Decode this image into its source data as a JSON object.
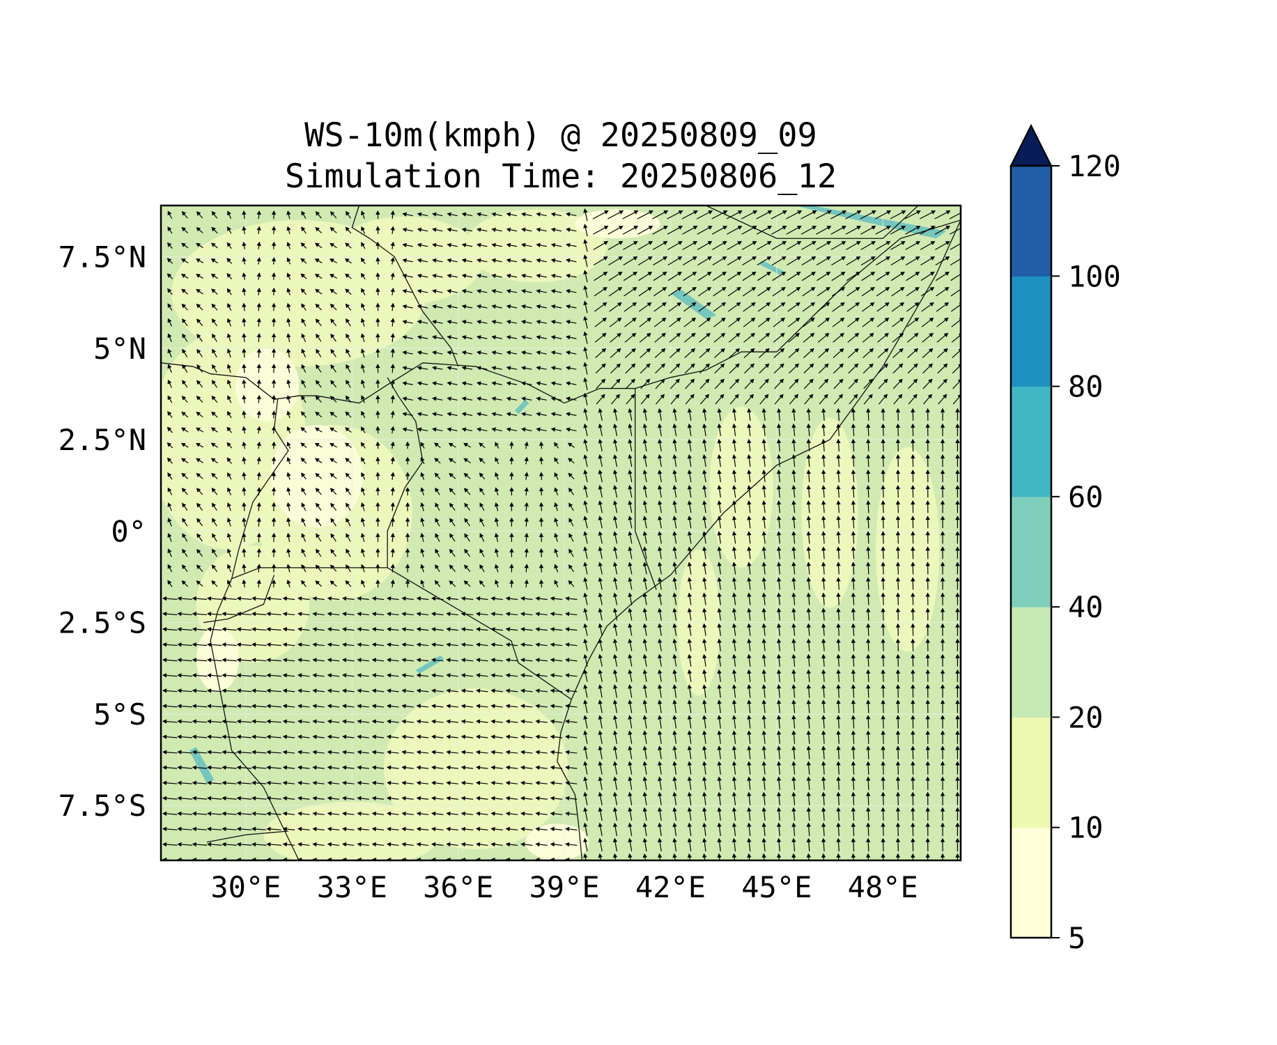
{
  "title": {
    "line1": "WS-10m(kmph) @ 20250809_09",
    "line2": "Simulation Time: 20250806_12"
  },
  "map": {
    "lon_range": [
      27.6,
      50.2
    ],
    "lat_range": [
      -9.0,
      8.9
    ],
    "x_ticks": [
      {
        "value": 30,
        "label": "30°E"
      },
      {
        "value": 33,
        "label": "33°E"
      },
      {
        "value": 36,
        "label": "36°E"
      },
      {
        "value": 39,
        "label": "39°E"
      },
      {
        "value": 42,
        "label": "42°E"
      },
      {
        "value": 45,
        "label": "45°E"
      },
      {
        "value": 48,
        "label": "48°E"
      }
    ],
    "y_ticks": [
      {
        "value": 7.5,
        "label": "7.5°N"
      },
      {
        "value": 5,
        "label": "5°N"
      },
      {
        "value": 2.5,
        "label": "2.5°N"
      },
      {
        "value": 0,
        "label": "0°"
      },
      {
        "value": -2.5,
        "label": "2.5°S"
      },
      {
        "value": -5,
        "label": "5°S"
      },
      {
        "value": -7.5,
        "label": "7.5°S"
      }
    ],
    "background_color": "#d0eab2",
    "borders": [
      {
        "name": "coast",
        "points": [
          [
            27.6,
            4.6
          ],
          [
            28.5,
            4.5
          ],
          [
            29.0,
            4.3
          ],
          [
            30.0,
            4.2
          ],
          [
            30.8,
            3.6
          ],
          [
            31.5,
            3.7
          ],
          [
            32.0,
            3.7
          ],
          [
            33.2,
            3.5
          ],
          [
            34.0,
            4.0
          ],
          [
            35.0,
            4.6
          ],
          [
            36.5,
            4.5
          ],
          [
            38.0,
            4.0
          ],
          [
            39.0,
            3.5
          ],
          [
            40.0,
            3.9
          ],
          [
            41.0,
            3.9
          ],
          [
            42.0,
            4.2
          ],
          [
            43.0,
            4.4
          ],
          [
            44.0,
            4.9
          ],
          [
            45.0,
            4.9
          ],
          [
            47.0,
            6.8
          ],
          [
            48.5,
            8.0
          ],
          [
            50.2,
            8.5
          ]
        ]
      },
      {
        "name": "eastern-coastline",
        "points": [
          [
            50.2,
            8.5
          ],
          [
            49.5,
            7.0
          ],
          [
            48.0,
            4.5
          ],
          [
            46.5,
            2.5
          ],
          [
            45.0,
            1.8
          ],
          [
            43.5,
            0.5
          ],
          [
            42.0,
            -1.2
          ],
          [
            41.0,
            -1.9
          ],
          [
            40.2,
            -2.6
          ],
          [
            39.7,
            -3.5
          ],
          [
            39.2,
            -4.6
          ],
          [
            38.9,
            -5.5
          ],
          [
            38.8,
            -6.3
          ],
          [
            39.3,
            -7.2
          ],
          [
            39.4,
            -8.0
          ],
          [
            39.5,
            -9.0
          ]
        ]
      },
      {
        "name": "somalia-kenya-border",
        "points": [
          [
            41.0,
            3.9
          ],
          [
            41.0,
            0.0
          ],
          [
            41.6,
            -1.6
          ]
        ]
      },
      {
        "name": "ethiopia-somalia-border",
        "points": [
          [
            43.0,
            8.9
          ],
          [
            45.0,
            8.0
          ],
          [
            48.0,
            8.0
          ],
          [
            49.0,
            8.9
          ]
        ]
      },
      {
        "name": "kenya-tanzania-border",
        "points": [
          [
            34.0,
            -1.0
          ],
          [
            37.5,
            -3.0
          ],
          [
            37.7,
            -3.6
          ],
          [
            39.2,
            -4.6
          ]
        ]
      },
      {
        "name": "kenya-uganda-border",
        "points": [
          [
            34.0,
            -1.0
          ],
          [
            34.0,
            0.0
          ],
          [
            34.5,
            1.2
          ],
          [
            35.0,
            1.9
          ],
          [
            34.8,
            3.0
          ],
          [
            34.3,
            3.7
          ],
          [
            34.0,
            4.2
          ]
        ]
      },
      {
        "name": "uganda-west-border",
        "points": [
          [
            29.6,
            -1.3
          ],
          [
            29.8,
            -0.5
          ],
          [
            30.2,
            0.8
          ],
          [
            31.2,
            2.2
          ],
          [
            30.8,
            2.8
          ],
          [
            30.9,
            3.6
          ]
        ]
      },
      {
        "name": "lake-victoria-south",
        "points": [
          [
            29.6,
            -1.3
          ],
          [
            30.4,
            -1.0
          ],
          [
            34.0,
            -1.0
          ]
        ]
      },
      {
        "name": "south-sudan-ethiopia",
        "points": [
          [
            33.2,
            8.9
          ],
          [
            33.0,
            8.3
          ],
          [
            33.5,
            8.0
          ],
          [
            34.2,
            7.5
          ],
          [
            35.0,
            6.0
          ],
          [
            35.8,
            5.0
          ],
          [
            36.0,
            4.5
          ]
        ]
      },
      {
        "name": "tanzania-west",
        "points": [
          [
            29.6,
            -1.3
          ],
          [
            29.2,
            -2.2
          ],
          [
            29.0,
            -3.0
          ],
          [
            29.3,
            -4.5
          ],
          [
            29.6,
            -6.0
          ],
          [
            30.5,
            -7.0
          ],
          [
            31.0,
            -8.0
          ],
          [
            31.5,
            -9.0
          ]
        ]
      },
      {
        "name": "rwanda-burundi",
        "points": [
          [
            28.8,
            -2.5
          ],
          [
            29.5,
            -2.4
          ],
          [
            30.5,
            -2.0
          ],
          [
            30.8,
            -1.2
          ]
        ]
      },
      {
        "name": "tanzania-zambia",
        "points": [
          [
            28.9,
            -8.5
          ],
          [
            30.0,
            -8.3
          ],
          [
            31.2,
            -8.2
          ]
        ]
      }
    ],
    "high_wind_patches": [
      {
        "name": "northeast-jet",
        "color": "#74c6be",
        "points": [
          [
            45.5,
            8.9
          ],
          [
            49.5,
            8.0
          ],
          [
            49.8,
            8.2
          ],
          [
            46.0,
            8.9
          ]
        ]
      },
      {
        "name": "ethiopia-rift",
        "color": "#74c6be",
        "points": [
          [
            42.0,
            6.5
          ],
          [
            43.0,
            5.8
          ],
          [
            43.3,
            5.9
          ],
          [
            42.3,
            6.6
          ]
        ]
      },
      {
        "name": "northeast-small",
        "color": "#74c6be",
        "points": [
          [
            44.5,
            7.3
          ],
          [
            45.1,
            7.0
          ],
          [
            45.2,
            7.1
          ],
          [
            44.6,
            7.4
          ]
        ]
      },
      {
        "name": "tanzania-sw",
        "color": "#74c6be",
        "points": [
          [
            28.4,
            -6.0
          ],
          [
            28.9,
            -6.9
          ],
          [
            29.1,
            -6.8
          ],
          [
            28.6,
            -5.9
          ]
        ]
      },
      {
        "name": "lake-region",
        "color": "#74c6be",
        "points": [
          [
            34.8,
            -3.8
          ],
          [
            35.5,
            -3.4
          ],
          [
            35.6,
            -3.5
          ],
          [
            34.9,
            -3.9
          ]
        ]
      },
      {
        "name": "kenya-north",
        "color": "#74c6be",
        "points": [
          [
            37.6,
            3.3
          ],
          [
            37.9,
            3.6
          ],
          [
            38.0,
            3.5
          ],
          [
            37.7,
            3.2
          ]
        ]
      }
    ],
    "low_wind_color": "#edf8bd",
    "very_low_wind_color": "#fbfdd8"
  },
  "colorbar": {
    "levels": [
      5,
      10,
      20,
      40,
      60,
      80,
      100,
      120
    ],
    "colors": [
      "#ffffd9",
      "#edf8b1",
      "#c7e9b4",
      "#7fcdbb",
      "#41b6c4",
      "#1d91c0",
      "#225ea8",
      "#253494"
    ],
    "extend_color": "#081d58",
    "tick_labels": [
      "5",
      "10",
      "20",
      "40",
      "60",
      "80",
      "100",
      "120"
    ]
  }
}
